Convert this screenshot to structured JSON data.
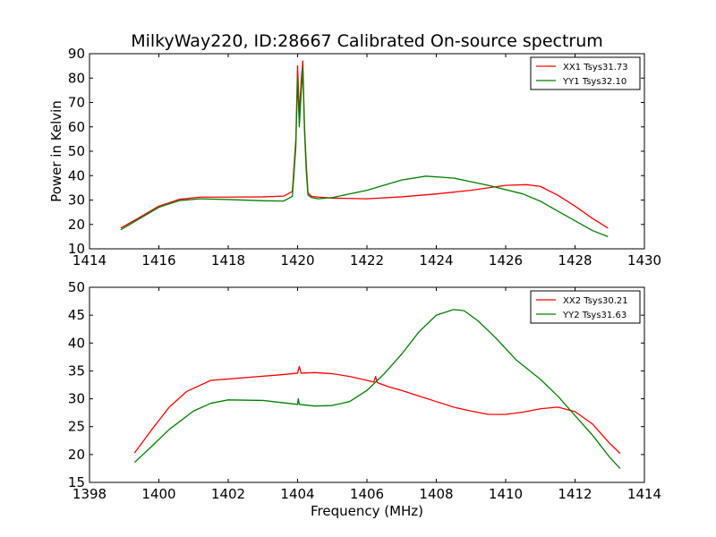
{
  "title": "MilkyWay220, ID:28667 Calibrated On-source spectrum",
  "colors": {
    "red": "#ff0000",
    "green": "#008000"
  },
  "chart_data": [
    {
      "type": "line",
      "title": "MilkyWay220, ID:28667 Calibrated On-source spectrum",
      "xlabel": "",
      "ylabel": "Power in Kelvin",
      "xlim": [
        1414,
        1430
      ],
      "ylim": [
        10,
        90
      ],
      "xticks": [
        1414,
        1416,
        1418,
        1420,
        1422,
        1424,
        1426,
        1428,
        1430
      ],
      "yticks": [
        10,
        20,
        30,
        40,
        50,
        60,
        70,
        80,
        90
      ],
      "legend_position": "top-right",
      "grid": false,
      "series": [
        {
          "name": "XX1 Tsys31.73",
          "color": "#ff0000",
          "x": [
            1414.9,
            1415.4,
            1416.0,
            1416.6,
            1417.2,
            1418.0,
            1419.0,
            1419.6,
            1419.85,
            1419.95,
            1420.0,
            1420.05,
            1420.1,
            1420.15,
            1420.2,
            1420.25,
            1420.3,
            1420.4,
            1420.6,
            1421.0,
            1422.0,
            1423.0,
            1424.0,
            1425.0,
            1426.0,
            1426.6,
            1427.0,
            1427.5,
            1428.0,
            1428.5,
            1428.95
          ],
          "y": [
            18.5,
            22.5,
            27.5,
            30.3,
            31.2,
            31.2,
            31.3,
            31.6,
            33.5,
            55,
            85,
            65,
            78,
            87,
            60,
            45,
            33,
            31.5,
            31.2,
            30.8,
            30.5,
            31.3,
            32.5,
            34.0,
            36.0,
            36.3,
            35.6,
            32.0,
            27.5,
            22.5,
            18.5
          ]
        },
        {
          "name": "YY1 Tsys32.10",
          "color": "#008000",
          "x": [
            1414.9,
            1415.4,
            1416.0,
            1416.6,
            1417.2,
            1418.0,
            1419.0,
            1419.6,
            1419.85,
            1419.95,
            1420.0,
            1420.05,
            1420.1,
            1420.15,
            1420.2,
            1420.25,
            1420.3,
            1420.4,
            1420.6,
            1421.0,
            1422.0,
            1423.0,
            1423.7,
            1424.5,
            1425.5,
            1426.5,
            1427.0,
            1427.5,
            1428.0,
            1428.5,
            1428.95
          ],
          "y": [
            17.8,
            22.0,
            27.0,
            29.8,
            30.5,
            30.2,
            29.7,
            29.6,
            31.5,
            52,
            80,
            60,
            73,
            84,
            58,
            42,
            32,
            31.0,
            30.5,
            31.0,
            34.0,
            38.2,
            39.8,
            39.0,
            36.0,
            32.5,
            29.5,
            25.5,
            21.5,
            17.5,
            15.0
          ]
        }
      ]
    },
    {
      "type": "line",
      "title": "",
      "xlabel": "Frequency (MHz)",
      "ylabel": "",
      "xlim": [
        1398,
        1414
      ],
      "ylim": [
        15,
        50
      ],
      "xticks": [
        1398,
        1400,
        1402,
        1404,
        1406,
        1408,
        1410,
        1412,
        1414
      ],
      "yticks": [
        15,
        20,
        25,
        30,
        35,
        40,
        45,
        50
      ],
      "legend_position": "top-right",
      "grid": false,
      "series": [
        {
          "name": "XX2 Tsys30.21",
          "color": "#ff0000",
          "x": [
            1399.3,
            1399.8,
            1400.3,
            1400.8,
            1401.5,
            1402.5,
            1403.5,
            1404.0,
            1404.05,
            1404.1,
            1404.5,
            1405.0,
            1405.5,
            1406.0,
            1406.2,
            1406.25,
            1406.3,
            1406.6,
            1407.0,
            1407.5,
            1408.0,
            1408.5,
            1409.0,
            1409.5,
            1410.0,
            1410.5,
            1411.0,
            1411.5,
            1412.0,
            1412.5,
            1413.0,
            1413.3
          ],
          "y": [
            20.3,
            24.5,
            28.5,
            31.3,
            33.3,
            33.8,
            34.3,
            34.6,
            35.8,
            34.6,
            34.7,
            34.5,
            34.0,
            33.3,
            33.0,
            34.0,
            32.9,
            32.2,
            31.5,
            30.5,
            29.5,
            28.5,
            27.8,
            27.2,
            27.2,
            27.6,
            28.2,
            28.5,
            27.7,
            25.5,
            22.0,
            20.2
          ]
        },
        {
          "name": "YY2 Tsys31.63",
          "color": "#008000",
          "x": [
            1399.3,
            1399.8,
            1400.3,
            1401.0,
            1401.5,
            1402.0,
            1403.0,
            1404.0,
            1404.02,
            1404.05,
            1404.5,
            1405.0,
            1405.5,
            1406.0,
            1406.5,
            1407.0,
            1407.5,
            1408.0,
            1408.5,
            1408.8,
            1409.2,
            1409.7,
            1410.3,
            1411.0,
            1411.5,
            1412.0,
            1412.5,
            1413.0,
            1413.3
          ],
          "y": [
            18.6,
            21.5,
            24.5,
            27.8,
            29.2,
            29.8,
            29.7,
            29.0,
            30.0,
            29.0,
            28.7,
            28.8,
            29.5,
            31.5,
            34.5,
            38.0,
            42.0,
            45.0,
            46.0,
            45.8,
            44.0,
            41.0,
            37.0,
            33.5,
            30.5,
            27.0,
            23.5,
            19.5,
            17.5
          ]
        }
      ]
    }
  ]
}
